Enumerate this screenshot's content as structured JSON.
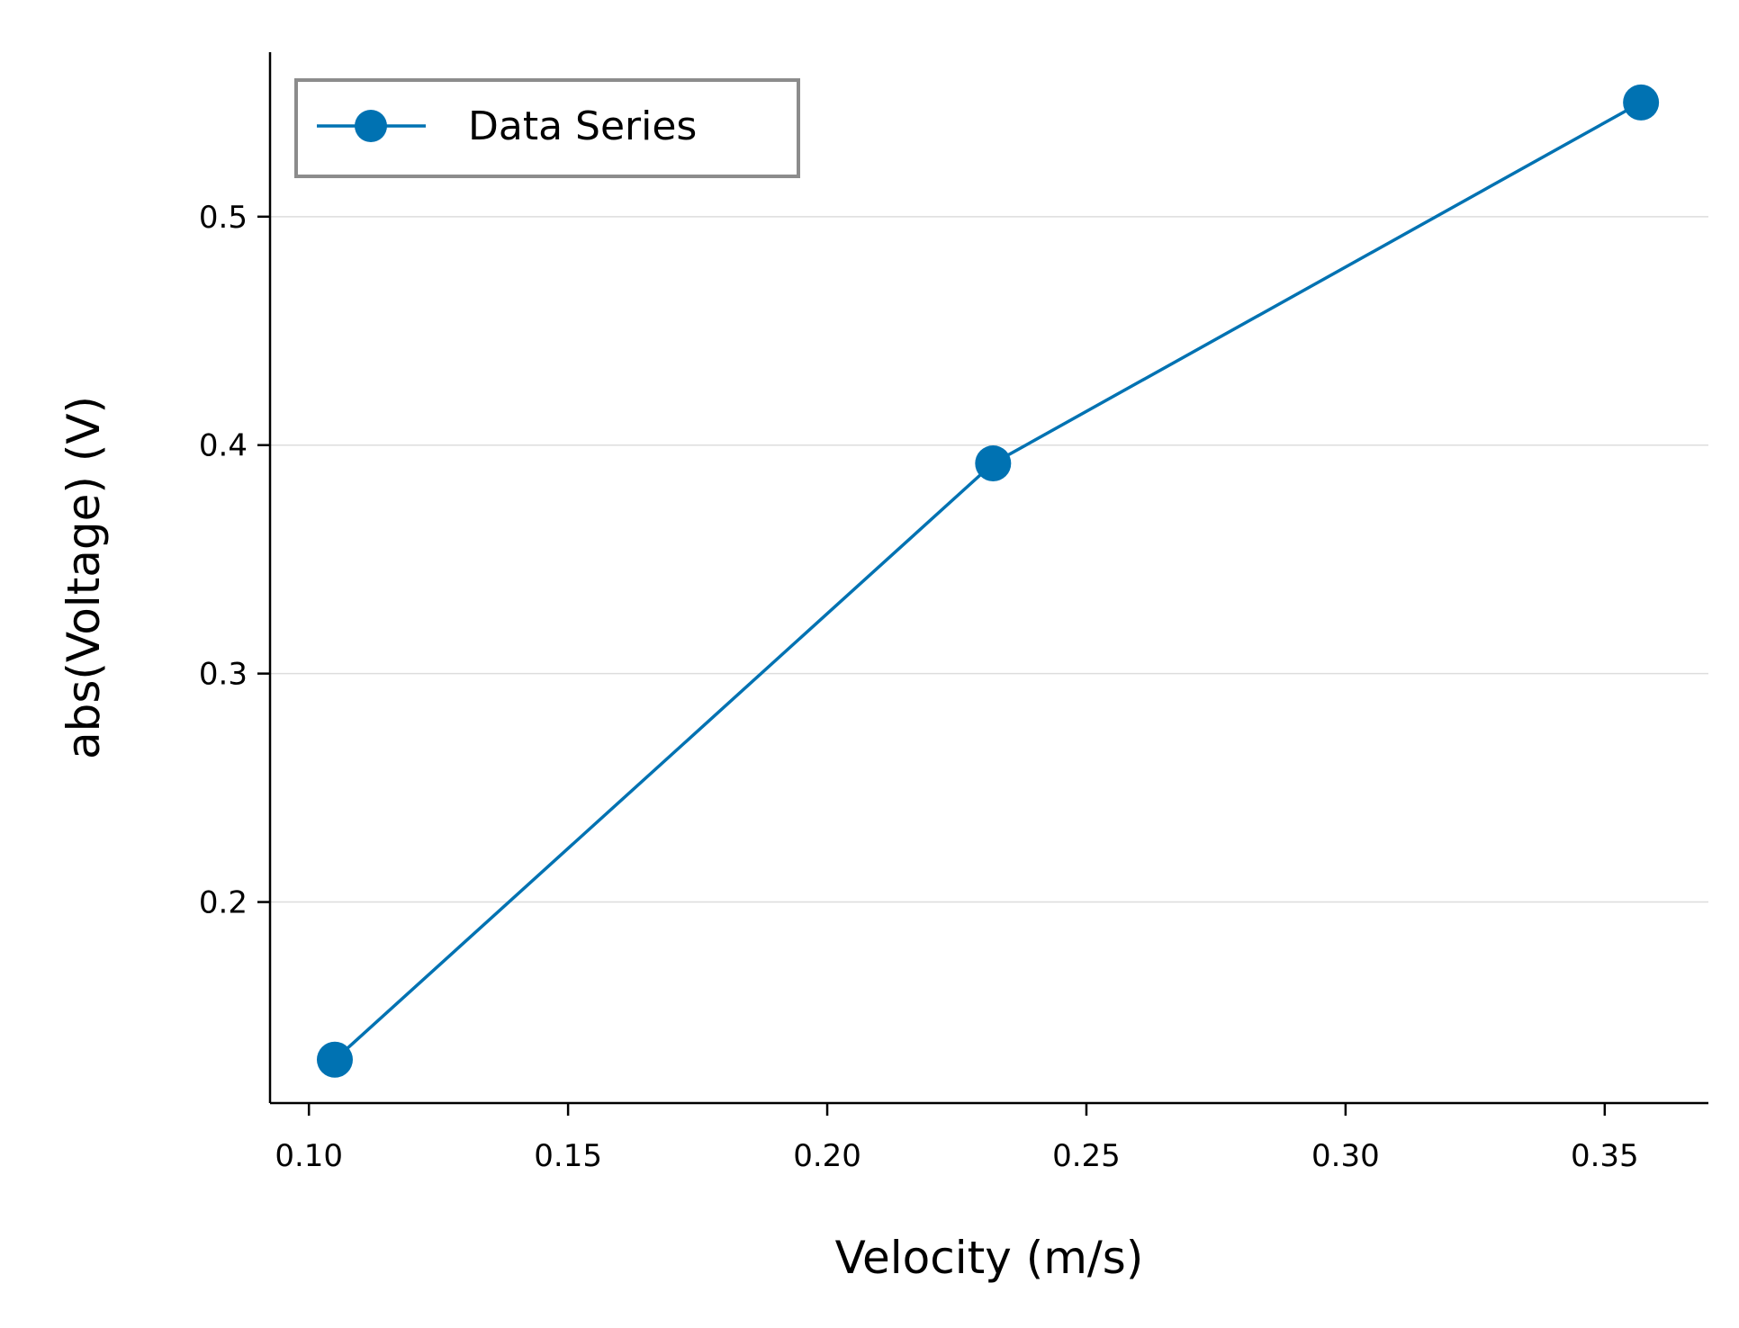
{
  "chart_data": {
    "type": "line",
    "title": "",
    "xlabel": "Velocity (m/s)",
    "ylabel": "abs(Voltage) (V)",
    "xlim": [
      0.0925,
      0.37
    ],
    "ylim": [
      0.112,
      0.572
    ],
    "x_ticks": [
      "0.10",
      "0.15",
      "0.20",
      "0.25",
      "0.30",
      "0.35"
    ],
    "y_ticks": [
      "0.2",
      "0.3",
      "0.4",
      "0.5"
    ],
    "grid": "horizontal",
    "legend_position": "top-left",
    "series": [
      {
        "name": "Data Series",
        "color": "#0072B2",
        "marker": "circle",
        "x": [
          0.105,
          0.232,
          0.357
        ],
        "y": [
          0.131,
          0.392,
          0.55
        ]
      }
    ]
  }
}
